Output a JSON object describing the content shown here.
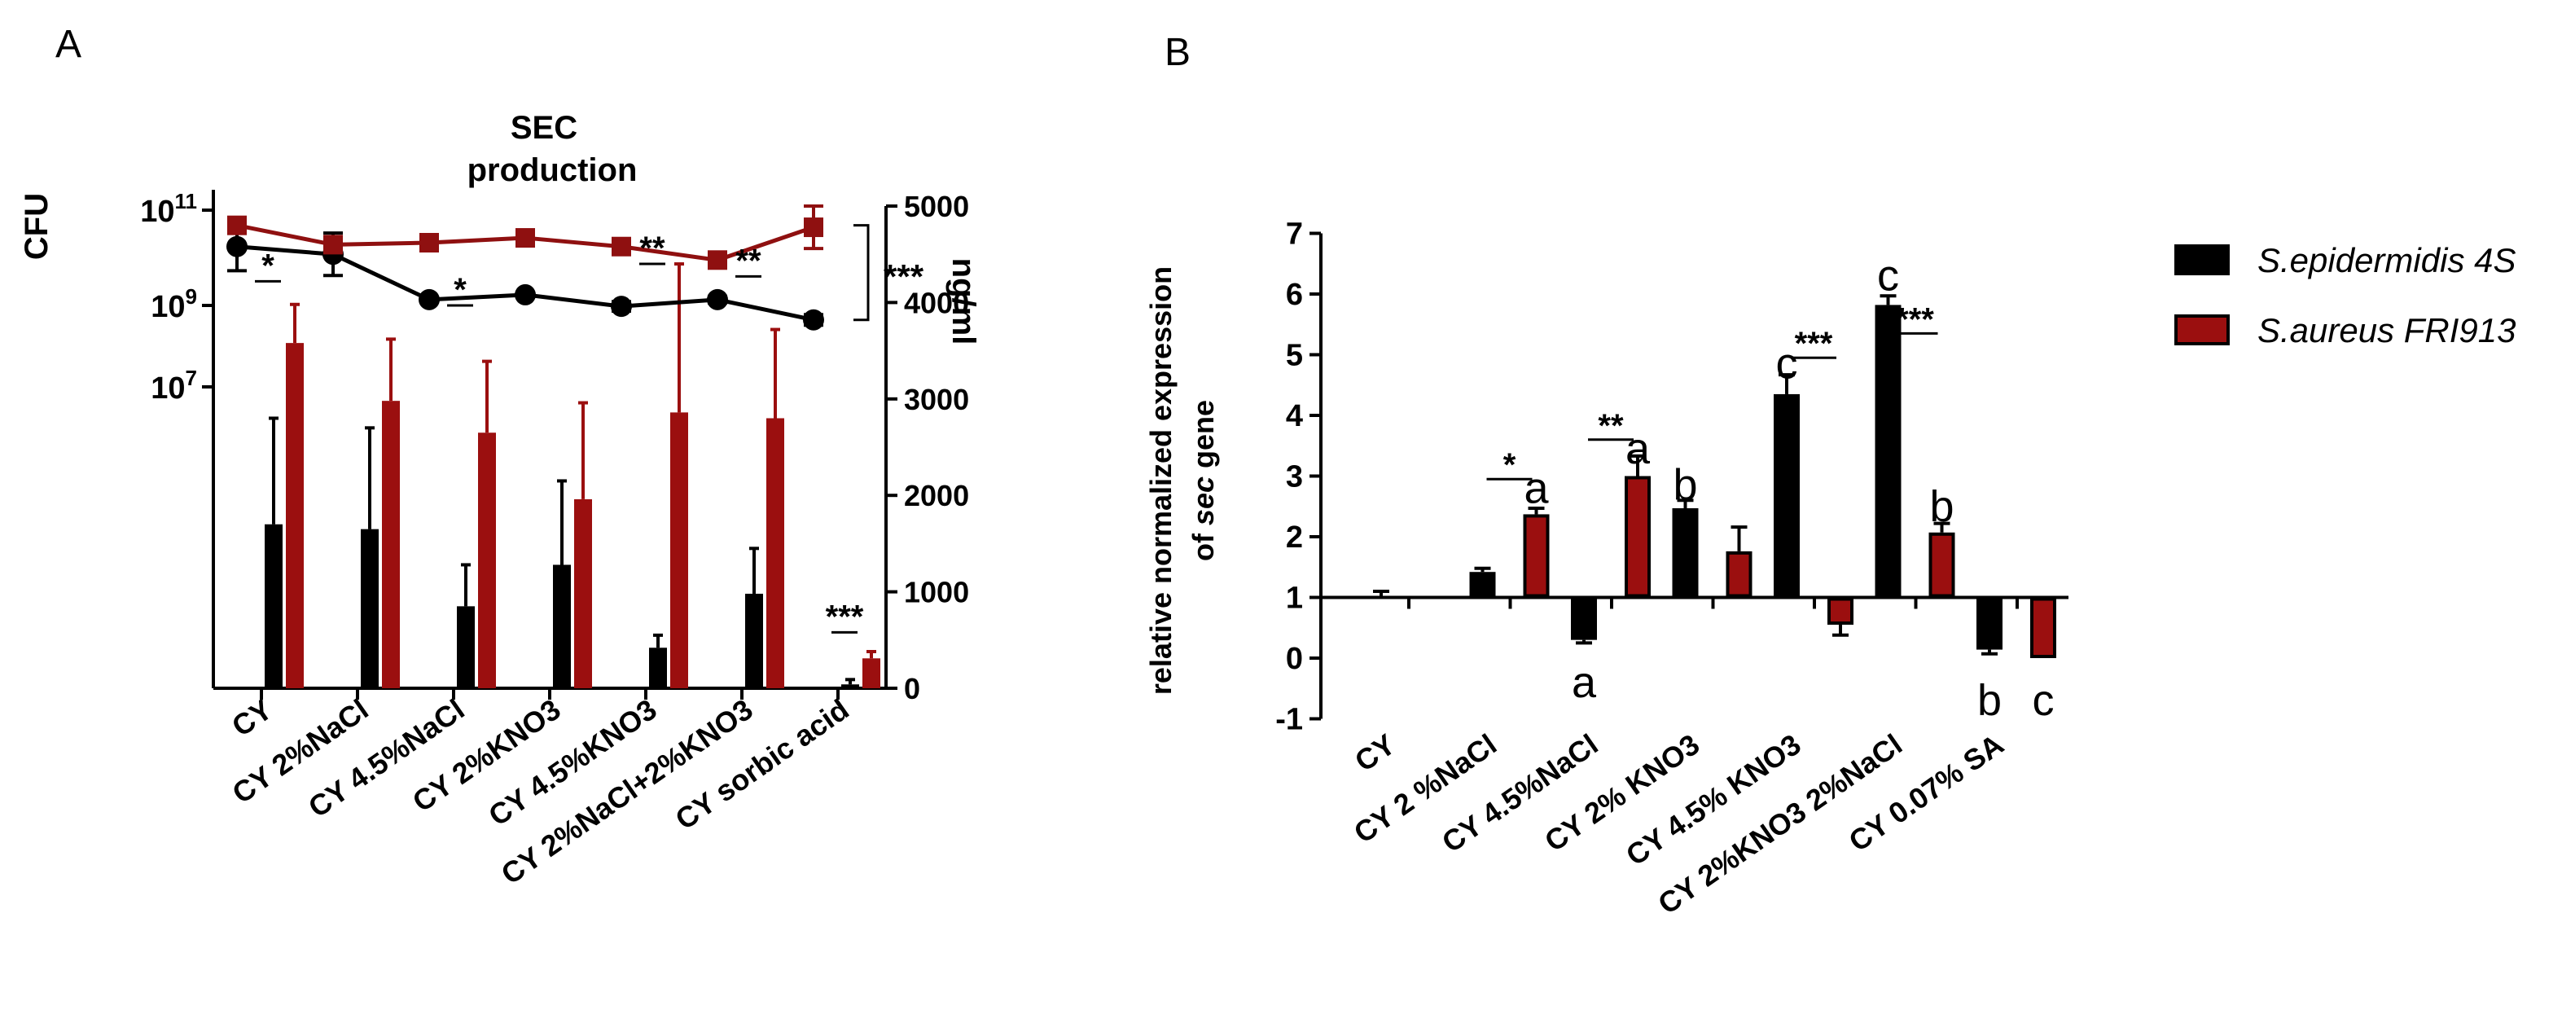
{
  "panels": {
    "a_label": "A",
    "b_label": "B"
  },
  "colors": {
    "black": "#000000",
    "red": "#9b0f0f",
    "line_red": "#8f1010"
  },
  "chart_data": [
    {
      "type": "bar",
      "panel": "A",
      "title_lines": [
        "SEC",
        "production"
      ],
      "left_axis": {
        "label": "CFU",
        "scale": "log",
        "ticks": [
          {
            "base": "10",
            "exp": "11",
            "value": 100000000000
          },
          {
            "base": "10",
            "exp": "9",
            "value": 1000000000
          },
          {
            "base": "10",
            "exp": "7",
            "value": 10000000
          }
        ]
      },
      "right_axis": {
        "label": "ng/ml",
        "range": [
          0,
          5000
        ],
        "ticks": [
          "0",
          "1000",
          "2000",
          "3000",
          "4000",
          "5000"
        ]
      },
      "categories": [
        "CY",
        "CY 2%NaCl",
        "CY 4.5%NaCl",
        "CY 2%KNO3",
        "CY 4.5%KNO3",
        "CY 2%NaCl+2%KNO3",
        "CY sorbic acid"
      ],
      "bar_series": [
        {
          "color": "black",
          "values": [
            1700,
            1650,
            850,
            1280,
            420,
            980,
            40
          ],
          "err": [
            1100,
            1050,
            430,
            870,
            130,
            470,
            50
          ]
        },
        {
          "color": "red",
          "values": [
            3580,
            2980,
            2650,
            1960,
            2860,
            2800,
            310
          ],
          "err": [
            400,
            640,
            740,
            1000,
            1540,
            920,
            70
          ]
        }
      ],
      "line_series": [
        {
          "color": "black",
          "values": [
            4580,
            4500,
            4030,
            4080,
            3960,
            4030,
            3820
          ],
          "err": [
            250,
            220,
            0,
            0,
            50,
            35,
            55
          ]
        },
        {
          "color": "red",
          "values": [
            4800,
            4600,
            4620,
            4670,
            4580,
            4440,
            4780
          ],
          "err": [
            30,
            30,
            80,
            30,
            30,
            30,
            220
          ]
        }
      ],
      "annotations": [
        {
          "category": "CY",
          "text": "*",
          "level": 4220
        },
        {
          "category": "CY 4.5%NaCl",
          "text": "*",
          "level": 3970
        },
        {
          "category": "CY 4.5%KNO3",
          "text": "**",
          "level": 4400
        },
        {
          "category": "CY 2%NaCl+2%KNO3",
          "text": "**",
          "level": 4270
        },
        {
          "category": "CY sorbic acid",
          "text": "***",
          "level": 580
        },
        {
          "category": "bracket",
          "text": "***",
          "level": 4150
        }
      ]
    },
    {
      "type": "bar",
      "panel": "B",
      "ylabel_lines": [
        "relative normalized expression",
        "of sec gene"
      ],
      "ylim": [
        -1,
        7
      ],
      "yticks": [
        "-1",
        "0",
        "1",
        "2",
        "3",
        "4",
        "5",
        "6",
        "7"
      ],
      "categories": [
        "CY",
        "CY 2 %NaCl",
        "CY 4.5%NaCl",
        "CY 2% KNO3",
        "CY 4.5% KNO3",
        "CY 2%KNO3 2%NaCl",
        "CY 0.07% SA"
      ],
      "series": [
        {
          "name": "S.epidermidis 4S",
          "color": "black",
          "values": [
            1.0,
            1.42,
            0.3,
            2.47,
            4.35,
            5.82,
            0.14
          ],
          "err": [
            0.1,
            0.06,
            0.05,
            0.13,
            0.32,
            0.15,
            0.07
          ]
        },
        {
          "name": " S.aureus FRI913",
          "color": "red",
          "values": [
            1.0,
            2.37,
            3.0,
            1.76,
            0.55,
            2.07,
            0.0
          ],
          "err": [
            0.0,
            0.1,
            0.33,
            0.4,
            0.17,
            0.15,
            0.0
          ]
        }
      ],
      "letters": [
        {
          "category": "CY 2 %NaCl",
          "series": 1,
          "text": "a",
          "pos": "above",
          "value": 2.8
        },
        {
          "category": "CY 4.5%NaCl",
          "series": 1,
          "text": "a",
          "pos": "above",
          "value": 3.45
        },
        {
          "category": "CY 4.5%NaCl",
          "series": 0,
          "text": "a",
          "pos": "below",
          "value": -0.4
        },
        {
          "category": "CY 2% KNO3",
          "series": 0,
          "text": "b",
          "pos": "above",
          "value": 2.85
        },
        {
          "category": "CY 4.5% KNO3",
          "series": 0,
          "text": "c",
          "pos": "above",
          "value": 4.85
        },
        {
          "category": "CY 2%KNO3 2%NaCl",
          "series": 0,
          "text": "c",
          "pos": "above",
          "value": 6.3
        },
        {
          "category": "CY 2%KNO3 2%NaCl",
          "series": 1,
          "text": "b",
          "pos": "above",
          "value": 2.5
        },
        {
          "category": "CY 0.07% SA",
          "series": 0,
          "text": "b",
          "pos": "below",
          "value": -0.7
        },
        {
          "category": "CY 0.07% SA",
          "series": 1,
          "text": "c",
          "pos": "below",
          "value": -0.7
        }
      ],
      "significance": [
        {
          "category": "CY 2 %NaCl",
          "text": "*",
          "value": 2.95
        },
        {
          "category": "CY 4.5%NaCl",
          "text": "**",
          "value": 3.6
        },
        {
          "category": "CY 4.5% KNO3",
          "text": "***",
          "value": 4.95
        },
        {
          "category": "CY 2%KNO3 2%NaCl",
          "text": "***",
          "value": 5.35
        }
      ],
      "legend": "right"
    }
  ]
}
